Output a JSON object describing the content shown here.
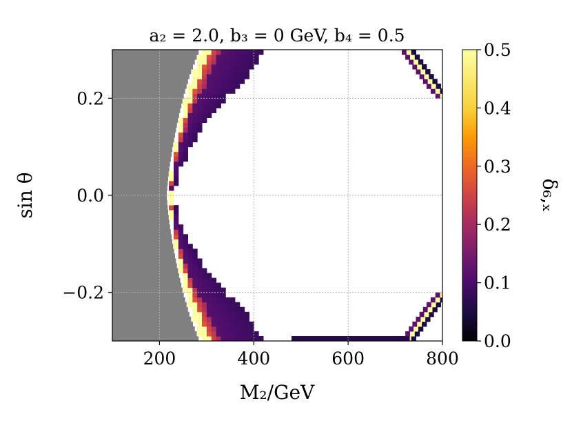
{
  "chart_data": {
    "type": "heatmap",
    "title": "a₂ = 2.0,  b₃ = 0  GeV,  b₄ = 0.5",
    "xlabel": "M₂/GeV",
    "ylabel": "sin θ",
    "colorbar_label": "δ₆,ₓ",
    "xlim": [
      100,
      800
    ],
    "ylim": [
      -0.3,
      0.3
    ],
    "x_ticks": [
      200,
      400,
      600,
      800
    ],
    "y_ticks": [
      -0.2,
      0.0,
      0.2
    ],
    "x_tick_labels": [
      "200",
      "400",
      "600",
      "800"
    ],
    "y_tick_labels": [
      "−0.2",
      "0.0",
      "0.2"
    ],
    "colorbar_range": [
      0.0,
      0.5
    ],
    "colorbar_ticks": [
      0.0,
      0.1,
      0.2,
      0.3,
      0.4,
      0.5
    ],
    "colorbar_tick_labels": [
      "0.0",
      "0.1",
      "0.2",
      "0.3",
      "0.4",
      "0.5"
    ],
    "colormap": "inferno",
    "grid": true,
    "excluded_region_color": "#808080",
    "cell_size": {
      "dx": 10,
      "dy": 0.01
    },
    "excluded_boundary": {
      "sin_theta": [
        0.0,
        0.05,
        0.1,
        0.15,
        0.2,
        0.25,
        0.3
      ],
      "M2": [
        215,
        220,
        228,
        238,
        250,
        265,
        285
      ]
    },
    "left_band_outer_width_M2": [
      10,
      13,
      17,
      21,
      26,
      32,
      40,
      50,
      60,
      75,
      85,
      100,
      110,
      120,
      125,
      130,
      140
    ],
    "outer_arc": {
      "sin_theta": [
        0.2,
        0.22,
        0.24,
        0.26,
        0.28,
        0.3
      ],
      "M2_center": [
        800,
        780,
        765,
        750,
        735,
        720
      ]
    },
    "notes_values": {
      "band_value_near_boundary": 0.5,
      "band_value_interior": 0.08
    }
  }
}
